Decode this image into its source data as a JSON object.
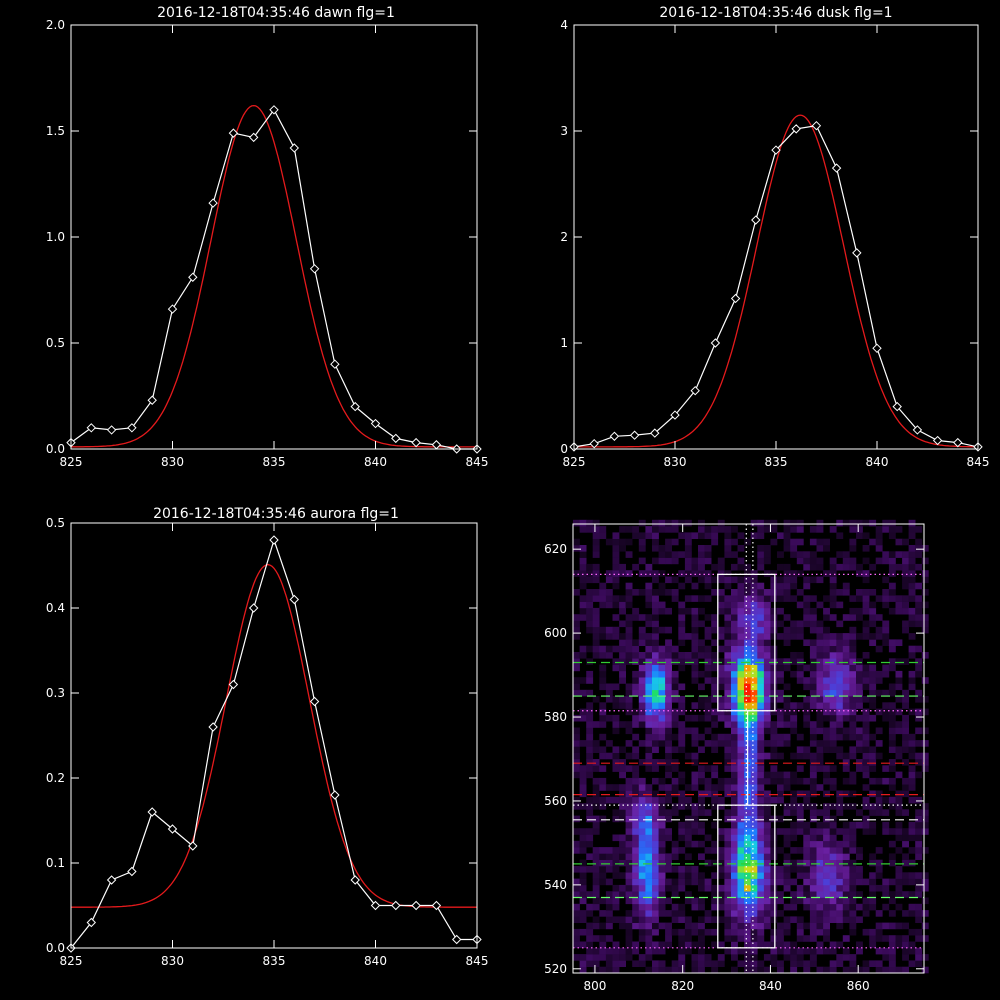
{
  "chart_data": [
    {
      "type": "line",
      "title": "2016-12-18T04:35:46 dawn flg=1",
      "xlim": [
        825,
        845
      ],
      "ylim": [
        0,
        2.0
      ],
      "xticks": [
        "825",
        "830",
        "835",
        "840",
        "845"
      ],
      "yticks": [
        "0.0",
        "0.5",
        "1.0",
        "1.5",
        "2.0"
      ],
      "series": [
        {
          "color": "#ffffff",
          "marker": "diamond",
          "x": [
            825,
            826,
            827,
            828,
            829,
            830,
            831,
            832,
            833,
            834,
            835,
            836,
            837,
            838,
            839,
            840,
            841,
            842,
            843,
            844,
            845
          ],
          "y": [
            0.03,
            0.1,
            0.09,
            0.1,
            0.23,
            0.66,
            0.81,
            1.16,
            1.49,
            1.47,
            1.6,
            1.42,
            0.85,
            0.4,
            0.2,
            0.12,
            0.05,
            0.03,
            0.02,
            0.0,
            0.0
          ]
        },
        {
          "color": "#e41a1c",
          "kind": "gaussian-fit",
          "amplitude": 1.61,
          "center": 834.0,
          "sigma": 2.1,
          "baseline": 0.01
        }
      ]
    },
    {
      "type": "line",
      "title": "2016-12-18T04:35:46 dusk flg=1",
      "xlim": [
        825,
        845
      ],
      "ylim": [
        0,
        4
      ],
      "xticks": [
        "825",
        "830",
        "835",
        "840",
        "845"
      ],
      "yticks": [
        "0",
        "1",
        "2",
        "3",
        "4"
      ],
      "series": [
        {
          "color": "#ffffff",
          "marker": "diamond",
          "x": [
            825,
            826,
            827,
            828,
            829,
            830,
            831,
            832,
            833,
            834,
            835,
            836,
            837,
            838,
            839,
            840,
            841,
            842,
            843,
            844,
            845
          ],
          "y": [
            0.02,
            0.05,
            0.12,
            0.13,
            0.15,
            0.32,
            0.55,
            1.0,
            1.42,
            2.16,
            2.82,
            3.02,
            3.05,
            2.65,
            1.85,
            0.95,
            0.4,
            0.18,
            0.08,
            0.06,
            0.02
          ]
        },
        {
          "color": "#e41a1c",
          "kind": "gaussian-fit",
          "amplitude": 3.13,
          "center": 836.2,
          "sigma": 2.15,
          "baseline": 0.02
        }
      ]
    },
    {
      "type": "line",
      "title": "2016-12-18T04:35:46 aurora flg=1",
      "xlim": [
        825,
        845
      ],
      "ylim": [
        0,
        0.5
      ],
      "xticks": [
        "825",
        "830",
        "835",
        "840",
        "845"
      ],
      "yticks": [
        "0.0",
        "0.1",
        "0.2",
        "0.3",
        "0.4",
        "0.5"
      ],
      "series": [
        {
          "color": "#ffffff",
          "marker": "diamond",
          "x": [
            825,
            826,
            827,
            828,
            829,
            830,
            831,
            832,
            833,
            834,
            835,
            836,
            837,
            838,
            839,
            840,
            841,
            842,
            843,
            844,
            845
          ],
          "y": [
            0.0,
            0.03,
            0.08,
            0.09,
            0.16,
            0.14,
            0.12,
            0.26,
            0.31,
            0.4,
            0.48,
            0.41,
            0.29,
            0.18,
            0.08,
            0.05,
            0.05,
            0.05,
            0.05,
            0.01,
            0.01
          ]
        },
        {
          "color": "#e41a1c",
          "kind": "gaussian-fit",
          "amplitude": 0.403,
          "center": 834.7,
          "sigma": 2.05,
          "baseline": 0.048
        }
      ]
    },
    {
      "type": "heatmap",
      "xlim": [
        795,
        875
      ],
      "ylim": [
        519,
        626
      ],
      "xticks": [
        "800",
        "820",
        "840",
        "860"
      ],
      "yticks": [
        "520",
        "540",
        "560",
        "580",
        "600",
        "620"
      ],
      "colormap": [
        "#000000",
        "#3a0a5a",
        "#6a1fa0",
        "#4c3fd8",
        "#1e78ff",
        "#18c8e8",
        "#20e060",
        "#c8e018",
        "#ff8a00",
        "#ff1a00"
      ],
      "blobs": [
        {
          "x": 835,
          "y": 587,
          "sx": 2.5,
          "sy": 6,
          "amp": 0.95
        },
        {
          "x": 835,
          "y": 543,
          "sx": 2.5,
          "sy": 7,
          "amp": 0.7
        },
        {
          "x": 814,
          "y": 586,
          "sx": 2,
          "sy": 5,
          "amp": 0.6
        },
        {
          "x": 812,
          "y": 543,
          "sx": 2,
          "sy": 7,
          "amp": 0.45
        },
        {
          "x": 855,
          "y": 588,
          "sx": 3,
          "sy": 5,
          "amp": 0.3
        },
        {
          "x": 853,
          "y": 542,
          "sx": 3,
          "sy": 6,
          "amp": 0.25
        },
        {
          "x": 835,
          "y": 566,
          "sx": 1.8,
          "sy": 10,
          "amp": 0.35
        },
        {
          "x": 836,
          "y": 604,
          "sx": 2.5,
          "sy": 4,
          "amp": 0.3
        },
        {
          "x": 811,
          "y": 556,
          "sx": 2,
          "sy": 4,
          "amp": 0.3
        }
      ],
      "boxes": [
        {
          "x": [
            828,
            841
          ],
          "y": [
            581.5,
            614
          ],
          "color": "#ffffff"
        },
        {
          "x": [
            828,
            841
          ],
          "y": [
            525,
            559
          ],
          "color": "#ffffff"
        }
      ],
      "vlines": [
        {
          "x": 834.5,
          "color": "#ffffff",
          "style": "dotted"
        },
        {
          "x": 836,
          "color": "#ffffff",
          "style": "dotted"
        },
        {
          "x": 834.8,
          "color": "#ffffff",
          "style": "solid",
          "y": [
            559,
            581.5
          ]
        }
      ],
      "hlines": [
        {
          "y": 614,
          "color": "#ff66ff",
          "style": "dotted"
        },
        {
          "y": 593,
          "color": "#33cc33",
          "style": "dashed"
        },
        {
          "y": 585,
          "color": "#66ff66",
          "style": "dashed"
        },
        {
          "y": 581.5,
          "color": "#ff66ff",
          "style": "dotted"
        },
        {
          "y": 569,
          "color": "#e41a1c",
          "style": "dashed"
        },
        {
          "y": 561.5,
          "color": "#e41a1c",
          "style": "dashed"
        },
        {
          "y": 559,
          "color": "#ffffff",
          "style": "dotted"
        },
        {
          "y": 555.5,
          "color": "#ffffff",
          "style": "dashed"
        },
        {
          "y": 545,
          "color": "#33cc33",
          "style": "dashed"
        },
        {
          "y": 537,
          "color": "#66ff66",
          "style": "dashed"
        },
        {
          "y": 525,
          "color": "#ff66ff",
          "style": "dotted"
        }
      ]
    }
  ]
}
